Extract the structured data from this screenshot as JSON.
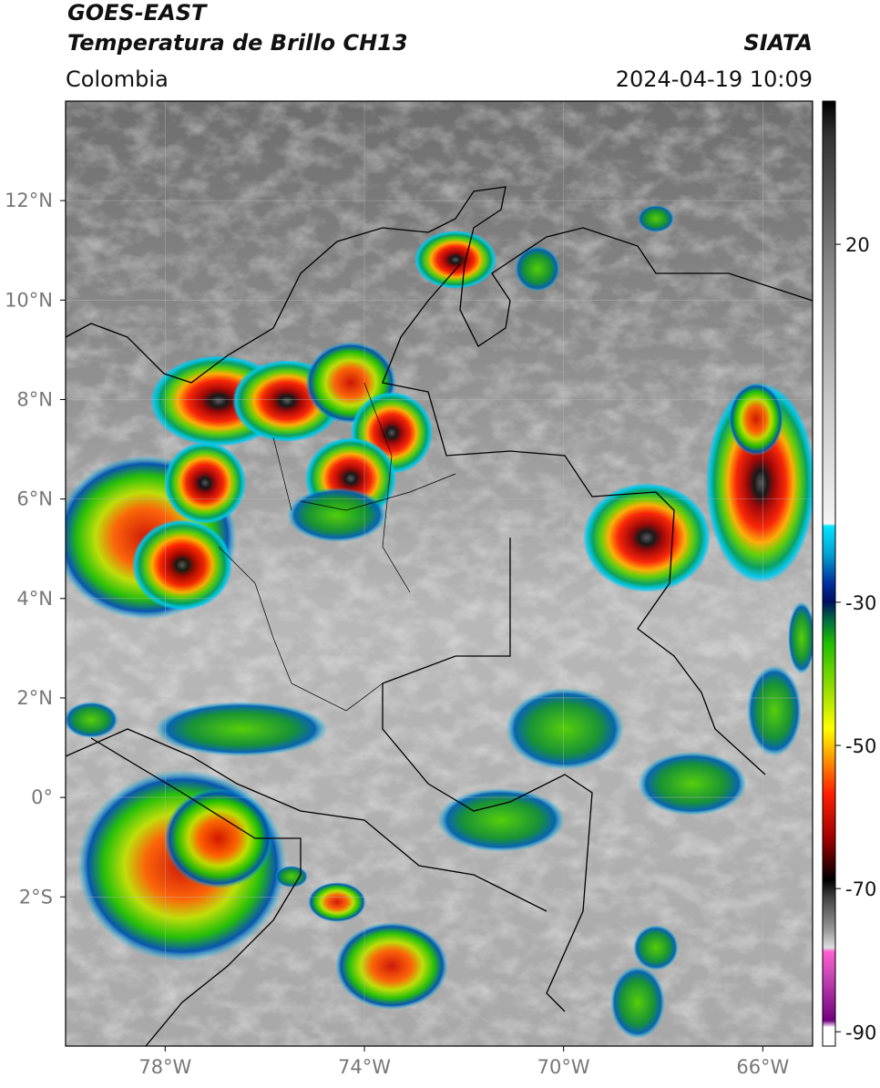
{
  "header": {
    "title": "GOES-EAST",
    "subtitle": "Temperatura de Brillo CH13",
    "source": "SIATA",
    "region": "Colombia",
    "datetime": "2024-04-19 10:09"
  },
  "map": {
    "lon_range": [
      -80,
      -65
    ],
    "lat_range": [
      -5,
      14
    ],
    "grid": true,
    "lat_ticks": [
      {
        "value": 12,
        "label": "12°N"
      },
      {
        "value": 10,
        "label": "10°N"
      },
      {
        "value": 8,
        "label": "8°N"
      },
      {
        "value": 6,
        "label": "6°N"
      },
      {
        "value": 4,
        "label": "4°N"
      },
      {
        "value": 2,
        "label": "2°N"
      },
      {
        "value": 0,
        "label": "0°"
      },
      {
        "value": -2,
        "label": "2°S"
      }
    ],
    "lon_ticks": [
      {
        "value": -78,
        "label": "78°W"
      },
      {
        "value": -74,
        "label": "74°W"
      },
      {
        "value": -70,
        "label": "70°W"
      },
      {
        "value": -66,
        "label": "66°W"
      }
    ]
  },
  "colorbar": {
    "range": [
      -92,
      40
    ],
    "ticks": [
      20,
      -30,
      -50,
      -70,
      -90
    ]
  }
}
